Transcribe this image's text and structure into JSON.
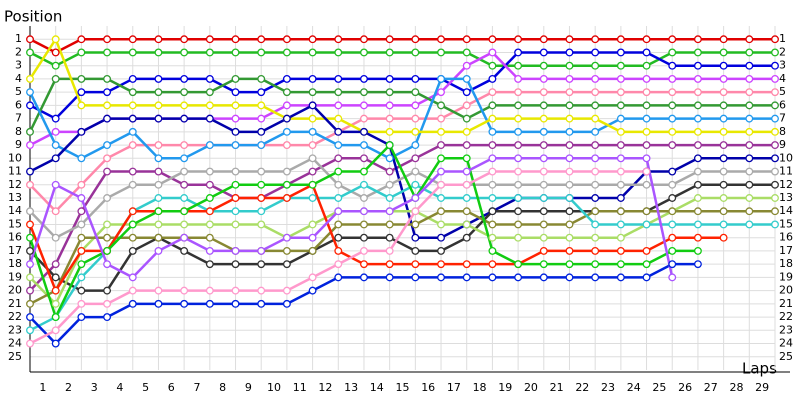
{
  "chart_data": {
    "type": "line",
    "y_label": "Position",
    "x_label": "Laps",
    "x": [
      0,
      1,
      2,
      3,
      4,
      5,
      6,
      7,
      8,
      9,
      10,
      11,
      12,
      13,
      14,
      15,
      16,
      17,
      18,
      19,
      20,
      21,
      22,
      23,
      24,
      25,
      26,
      27,
      28,
      29
    ],
    "xlim": [
      0,
      29
    ],
    "ylim": [
      26,
      0
    ],
    "xticks": [
      1,
      2,
      3,
      4,
      5,
      6,
      7,
      8,
      9,
      10,
      11,
      12,
      13,
      14,
      15,
      16,
      17,
      18,
      19,
      20,
      21,
      22,
      23,
      24,
      25,
      26,
      27,
      28,
      29
    ],
    "yticks": [
      1,
      2,
      3,
      4,
      5,
      6,
      7,
      8,
      9,
      10,
      11,
      12,
      13,
      14,
      15,
      16,
      17,
      18,
      19,
      20,
      21,
      22,
      23,
      24,
      25
    ],
    "grid": true,
    "series": [
      {
        "color": "#e00000",
        "values": [
          1,
          2,
          1,
          1,
          1,
          1,
          1,
          1,
          1,
          1,
          1,
          1,
          1,
          1,
          1,
          1,
          1,
          1,
          1,
          1,
          1,
          1,
          1,
          1,
          1,
          1,
          1,
          1,
          1,
          1
        ]
      },
      {
        "color": "#22bb22",
        "values": [
          2,
          3,
          2,
          2,
          2,
          2,
          2,
          2,
          2,
          2,
          2,
          2,
          2,
          2,
          2,
          2,
          2,
          2,
          3,
          3,
          3,
          3,
          3,
          3,
          3,
          2,
          2,
          2,
          2,
          2
        ]
      },
      {
        "color": "#0000dd",
        "values": [
          6,
          7,
          5,
          5,
          4,
          4,
          4,
          4,
          5,
          5,
          4,
          4,
          4,
          4,
          4,
          4,
          4,
          5,
          4,
          2,
          2,
          2,
          2,
          2,
          2,
          3,
          3,
          3,
          3,
          3
        ]
      },
      {
        "color": "#cc44ff",
        "values": [
          9,
          8,
          8,
          7,
          7,
          7,
          7,
          7,
          7,
          7,
          6,
          6,
          6,
          6,
          6,
          6,
          5,
          3,
          2,
          4,
          4,
          4,
          4,
          4,
          4,
          4,
          4,
          4,
          4,
          4
        ]
      },
      {
        "color": "#ff88aa",
        "values": [
          12,
          14,
          12,
          10,
          9,
          9,
          9,
          9,
          9,
          9,
          9,
          9,
          8,
          7,
          7,
          7,
          7,
          6,
          5,
          5,
          5,
          5,
          5,
          5,
          5,
          5,
          5,
          5,
          5,
          5
        ]
      },
      {
        "color": "#339933",
        "values": [
          8,
          4,
          4,
          4,
          5,
          5,
          5,
          5,
          4,
          4,
          5,
          5,
          5,
          5,
          5,
          5,
          6,
          7,
          6,
          6,
          6,
          6,
          6,
          6,
          6,
          6,
          6,
          6,
          6,
          6
        ]
      },
      {
        "color": "#2299ee",
        "values": [
          5,
          9,
          10,
          9,
          8,
          10,
          10,
          9,
          9,
          9,
          8,
          8,
          9,
          9,
          10,
          9,
          4,
          4,
          8,
          8,
          8,
          8,
          8,
          7,
          7,
          7,
          7,
          7,
          7,
          7
        ]
      },
      {
        "color": "#e8e800",
        "values": [
          4,
          1,
          6,
          6,
          6,
          6,
          6,
          6,
          6,
          6,
          7,
          7,
          7,
          8,
          8,
          8,
          8,
          8,
          7,
          7,
          7,
          7,
          7,
          8,
          8,
          8,
          8,
          8,
          8,
          8
        ]
      },
      {
        "color": "#993399",
        "values": [
          20,
          18,
          14,
          11,
          11,
          11,
          12,
          12,
          13,
          13,
          12,
          11,
          10,
          10,
          11,
          10,
          9,
          9,
          9,
          9,
          9,
          9,
          9,
          9,
          9,
          9,
          9,
          9,
          9,
          9
        ]
      },
      {
        "color": "#0000aa",
        "values": [
          11,
          10,
          8,
          7,
          7,
          7,
          7,
          7,
          8,
          8,
          7,
          6,
          8,
          8,
          9,
          16,
          16,
          15,
          14,
          13,
          13,
          13,
          13,
          13,
          11,
          11,
          10,
          10,
          10,
          10
        ]
      },
      {
        "color": "#aaaaaa",
        "values": [
          14,
          16,
          15,
          13,
          12,
          12,
          11,
          11,
          11,
          11,
          11,
          10,
          12,
          13,
          12,
          11,
          12,
          12,
          12,
          12,
          12,
          12,
          12,
          12,
          12,
          12,
          11,
          11,
          11,
          11
        ]
      },
      {
        "color": "#333333",
        "values": [
          17,
          19,
          20,
          20,
          17,
          16,
          17,
          18,
          18,
          18,
          18,
          17,
          16,
          16,
          16,
          17,
          17,
          16,
          14,
          14,
          14,
          14,
          14,
          14,
          14,
          13,
          12,
          12,
          12,
          12
        ]
      },
      {
        "color": "#aadd66",
        "values": [
          19,
          21,
          17,
          15,
          15,
          15,
          15,
          15,
          15,
          15,
          16,
          15,
          14,
          14,
          14,
          14,
          15,
          15,
          16,
          16,
          16,
          16,
          16,
          16,
          15,
          14,
          13,
          13,
          13,
          13
        ]
      },
      {
        "color": "#888833",
        "values": [
          21,
          20,
          16,
          16,
          16,
          16,
          16,
          16,
          17,
          17,
          17,
          17,
          15,
          15,
          15,
          15,
          14,
          14,
          15,
          15,
          15,
          15,
          14,
          14,
          14,
          14,
          14,
          14,
          14,
          14
        ]
      },
      {
        "color": "#33cccc",
        "values": [
          23,
          22,
          19,
          17,
          14,
          13,
          13,
          14,
          14,
          14,
          13,
          13,
          13,
          12,
          13,
          12,
          13,
          13,
          13,
          13,
          13,
          13,
          15,
          15,
          15,
          15,
          15,
          15,
          15,
          15
        ]
      },
      {
        "color": "#ff2200",
        "values": [
          15,
          20,
          17,
          17,
          14,
          14,
          14,
          14,
          13,
          13,
          13,
          12,
          17,
          18,
          18,
          18,
          18,
          18,
          18,
          18,
          17,
          17,
          17,
          17,
          17,
          16,
          16,
          16,
          null,
          null
        ]
      },
      {
        "color": "#11cc11",
        "values": [
          16,
          22,
          18,
          17,
          15,
          14,
          14,
          13,
          12,
          12,
          12,
          12,
          11,
          11,
          9,
          13,
          10,
          10,
          17,
          18,
          18,
          18,
          18,
          18,
          18,
          17,
          17,
          null,
          null,
          null
        ]
      },
      {
        "color": "#0022dd",
        "values": [
          22,
          24,
          22,
          22,
          21,
          21,
          21,
          21,
          21,
          21,
          21,
          20,
          19,
          19,
          19,
          19,
          19,
          19,
          19,
          19,
          19,
          19,
          19,
          19,
          19,
          18,
          18,
          null,
          null,
          null
        ]
      },
      {
        "color": "#aa55ff",
        "values": [
          18,
          12,
          13,
          18,
          19,
          17,
          16,
          17,
          17,
          17,
          16,
          16,
          14,
          14,
          14,
          13,
          11,
          11,
          10,
          10,
          10,
          10,
          10,
          10,
          10,
          19,
          null,
          null,
          null,
          null
        ]
      },
      {
        "color": "#ff99cc",
        "values": [
          24,
          23,
          21,
          21,
          20,
          20,
          20,
          20,
          20,
          20,
          20,
          19,
          18,
          17,
          17,
          14,
          12,
          12,
          11,
          11,
          11,
          11,
          11,
          11,
          11,
          null,
          null,
          null,
          null,
          null
        ]
      }
    ]
  }
}
